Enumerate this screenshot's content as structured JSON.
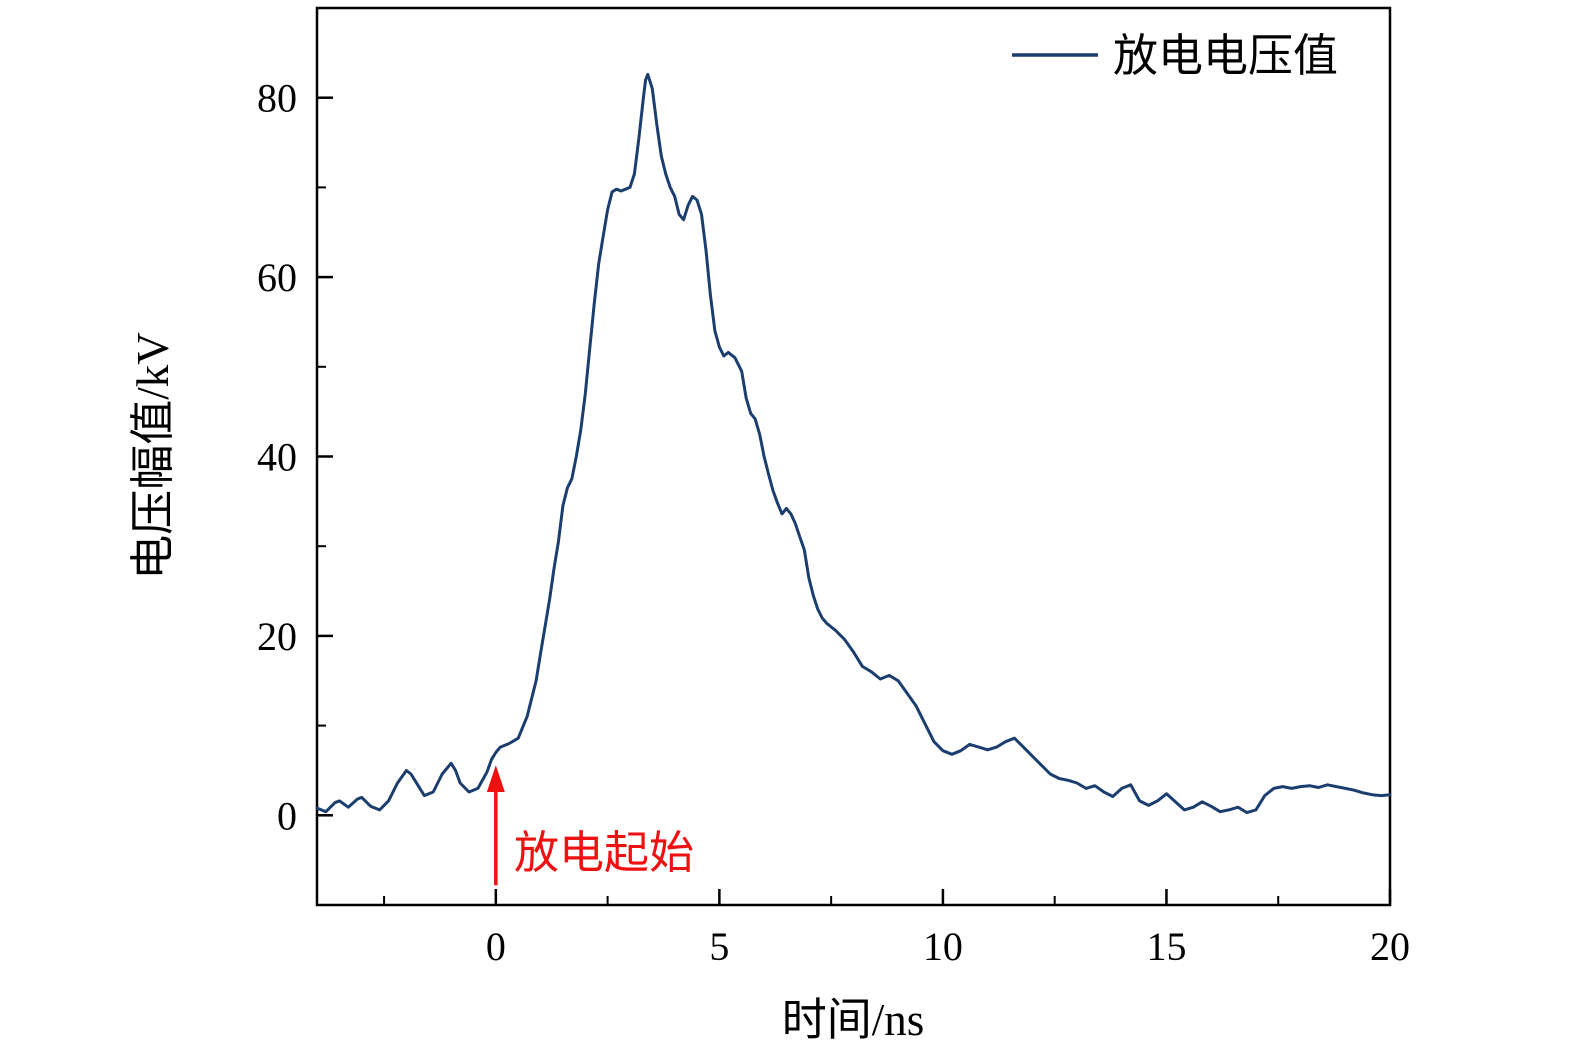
{
  "chart_data": {
    "type": "line",
    "title": "",
    "xlabel": "时间/ns",
    "ylabel": "电压幅值/kV",
    "xlim": [
      -4,
      20
    ],
    "ylim": [
      -10,
      90
    ],
    "x_major_ticks": [
      0,
      5,
      10,
      15,
      20
    ],
    "x_minor_ticks": [
      -2.5,
      2.5,
      7.5,
      12.5,
      17.5
    ],
    "y_major_ticks": [
      0,
      20,
      40,
      60,
      80
    ],
    "y_minor_ticks": [
      10,
      30,
      50,
      70
    ],
    "grid": "off",
    "legend_position": "top-right-inside",
    "line_color": "#1b3e6f",
    "annotation": {
      "text": "放电起始",
      "x": 0,
      "arrow_color": "#ee1111"
    },
    "legend": {
      "label": "放电电压值"
    },
    "series": [
      {
        "name": "放电电压值",
        "points": [
          [
            -4.0,
            0.8
          ],
          [
            -3.8,
            0.4
          ],
          [
            -3.6,
            1.4
          ],
          [
            -3.5,
            1.6
          ],
          [
            -3.3,
            0.9
          ],
          [
            -3.1,
            1.8
          ],
          [
            -3.0,
            2.0
          ],
          [
            -2.8,
            1.0
          ],
          [
            -2.6,
            0.6
          ],
          [
            -2.4,
            1.6
          ],
          [
            -2.2,
            3.6
          ],
          [
            -2.0,
            5.0
          ],
          [
            -1.9,
            4.6
          ],
          [
            -1.8,
            3.8
          ],
          [
            -1.6,
            2.2
          ],
          [
            -1.4,
            2.6
          ],
          [
            -1.2,
            4.6
          ],
          [
            -1.0,
            5.8
          ],
          [
            -0.9,
            5.0
          ],
          [
            -0.8,
            3.6
          ],
          [
            -0.6,
            2.6
          ],
          [
            -0.4,
            3.0
          ],
          [
            -0.2,
            4.8
          ],
          [
            -0.1,
            6.2
          ],
          [
            0.0,
            7.0
          ],
          [
            0.1,
            7.6
          ],
          [
            0.3,
            8.0
          ],
          [
            0.5,
            8.6
          ],
          [
            0.7,
            11.0
          ],
          [
            0.9,
            15.0
          ],
          [
            1.0,
            18.0
          ],
          [
            1.1,
            21.0
          ],
          [
            1.2,
            24.0
          ],
          [
            1.3,
            27.5
          ],
          [
            1.4,
            30.5
          ],
          [
            1.5,
            34.5
          ],
          [
            1.6,
            36.5
          ],
          [
            1.7,
            37.5
          ],
          [
            1.8,
            40.0
          ],
          [
            1.9,
            43.0
          ],
          [
            2.0,
            47.0
          ],
          [
            2.1,
            52.0
          ],
          [
            2.2,
            57.0
          ],
          [
            2.3,
            61.5
          ],
          [
            2.4,
            64.5
          ],
          [
            2.5,
            67.5
          ],
          [
            2.6,
            69.5
          ],
          [
            2.7,
            69.8
          ],
          [
            2.8,
            69.6
          ],
          [
            2.9,
            69.8
          ],
          [
            3.0,
            70.0
          ],
          [
            3.1,
            71.5
          ],
          [
            3.2,
            75.5
          ],
          [
            3.3,
            80.0
          ],
          [
            3.35,
            82.0
          ],
          [
            3.4,
            82.6
          ],
          [
            3.5,
            81.0
          ],
          [
            3.6,
            77.0
          ],
          [
            3.7,
            73.5
          ],
          [
            3.8,
            71.5
          ],
          [
            3.9,
            70.0
          ],
          [
            4.0,
            69.0
          ],
          [
            4.1,
            67.0
          ],
          [
            4.2,
            66.4
          ],
          [
            4.3,
            68.0
          ],
          [
            4.4,
            69.0
          ],
          [
            4.5,
            68.6
          ],
          [
            4.6,
            67.0
          ],
          [
            4.7,
            63.0
          ],
          [
            4.8,
            58.0
          ],
          [
            4.9,
            54.0
          ],
          [
            5.0,
            52.2
          ],
          [
            5.1,
            51.2
          ],
          [
            5.2,
            51.6
          ],
          [
            5.35,
            51.0
          ],
          [
            5.5,
            49.5
          ],
          [
            5.6,
            46.5
          ],
          [
            5.7,
            44.8
          ],
          [
            5.8,
            44.2
          ],
          [
            5.9,
            42.5
          ],
          [
            6.0,
            40.0
          ],
          [
            6.1,
            38.0
          ],
          [
            6.2,
            36.2
          ],
          [
            6.3,
            34.8
          ],
          [
            6.4,
            33.6
          ],
          [
            6.5,
            34.2
          ],
          [
            6.6,
            33.6
          ],
          [
            6.7,
            32.5
          ],
          [
            6.8,
            31.0
          ],
          [
            6.9,
            29.6
          ],
          [
            7.0,
            26.5
          ],
          [
            7.1,
            24.5
          ],
          [
            7.2,
            23.0
          ],
          [
            7.3,
            22.0
          ],
          [
            7.4,
            21.4
          ],
          [
            7.6,
            20.6
          ],
          [
            7.8,
            19.6
          ],
          [
            8.0,
            18.2
          ],
          [
            8.2,
            16.6
          ],
          [
            8.4,
            16.0
          ],
          [
            8.6,
            15.2
          ],
          [
            8.8,
            15.6
          ],
          [
            9.0,
            15.0
          ],
          [
            9.2,
            13.6
          ],
          [
            9.4,
            12.2
          ],
          [
            9.6,
            10.2
          ],
          [
            9.8,
            8.2
          ],
          [
            10.0,
            7.2
          ],
          [
            10.2,
            6.8
          ],
          [
            10.4,
            7.2
          ],
          [
            10.6,
            7.9
          ],
          [
            10.8,
            7.6
          ],
          [
            11.0,
            7.3
          ],
          [
            11.2,
            7.6
          ],
          [
            11.4,
            8.2
          ],
          [
            11.6,
            8.6
          ],
          [
            11.8,
            7.6
          ],
          [
            12.0,
            6.6
          ],
          [
            12.2,
            5.6
          ],
          [
            12.4,
            4.6
          ],
          [
            12.6,
            4.1
          ],
          [
            12.8,
            3.9
          ],
          [
            13.0,
            3.6
          ],
          [
            13.2,
            3.0
          ],
          [
            13.4,
            3.3
          ],
          [
            13.6,
            2.6
          ],
          [
            13.8,
            2.1
          ],
          [
            14.0,
            3.0
          ],
          [
            14.2,
            3.4
          ],
          [
            14.4,
            1.6
          ],
          [
            14.6,
            1.1
          ],
          [
            14.8,
            1.6
          ],
          [
            15.0,
            2.4
          ],
          [
            15.2,
            1.5
          ],
          [
            15.4,
            0.6
          ],
          [
            15.6,
            0.9
          ],
          [
            15.8,
            1.5
          ],
          [
            16.0,
            1.0
          ],
          [
            16.2,
            0.4
          ],
          [
            16.4,
            0.6
          ],
          [
            16.6,
            0.9
          ],
          [
            16.8,
            0.3
          ],
          [
            17.0,
            0.6
          ],
          [
            17.2,
            2.2
          ],
          [
            17.4,
            3.0
          ],
          [
            17.6,
            3.2
          ],
          [
            17.8,
            3.0
          ],
          [
            18.0,
            3.2
          ],
          [
            18.2,
            3.3
          ],
          [
            18.4,
            3.1
          ],
          [
            18.6,
            3.4
          ],
          [
            18.8,
            3.2
          ],
          [
            19.0,
            3.0
          ],
          [
            19.2,
            2.8
          ],
          [
            19.4,
            2.5
          ],
          [
            19.6,
            2.3
          ],
          [
            19.8,
            2.2
          ],
          [
            20.0,
            2.3
          ]
        ]
      }
    ]
  }
}
